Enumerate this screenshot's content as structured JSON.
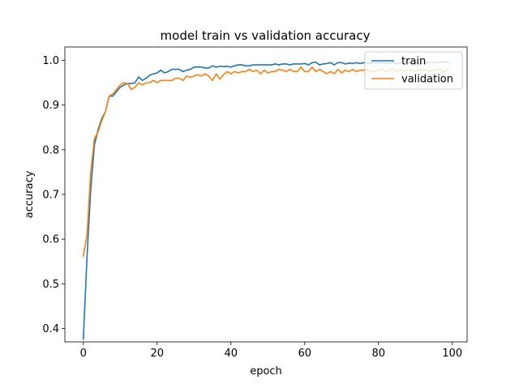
{
  "chart_data": {
    "type": "line",
    "title": "model train vs validation accuracy",
    "xlabel": "epoch",
    "ylabel": "accuracy",
    "xlim": [
      -5,
      104
    ],
    "ylim": [
      0.37,
      1.03
    ],
    "xticks": [
      0,
      20,
      40,
      60,
      80,
      100
    ],
    "yticks": [
      0.4,
      0.5,
      0.6,
      0.7,
      0.8,
      0.9,
      1.0
    ],
    "xtick_labels": [
      "0",
      "20",
      "40",
      "60",
      "80",
      "100"
    ],
    "ytick_labels": [
      "0.4",
      "0.5",
      "0.6",
      "0.7",
      "0.8",
      "0.9",
      "1.0"
    ],
    "grid": false,
    "legend_position": "upper right",
    "x": [
      0,
      1,
      2,
      3,
      4,
      5,
      6,
      7,
      8,
      9,
      10,
      11,
      12,
      13,
      14,
      15,
      16,
      17,
      18,
      19,
      20,
      21,
      22,
      23,
      24,
      25,
      26,
      27,
      28,
      29,
      30,
      31,
      32,
      33,
      34,
      35,
      36,
      37,
      38,
      39,
      40,
      41,
      42,
      43,
      44,
      45,
      46,
      47,
      48,
      49,
      50,
      51,
      52,
      53,
      54,
      55,
      56,
      57,
      58,
      59,
      60,
      61,
      62,
      63,
      64,
      65,
      66,
      67,
      68,
      69,
      70,
      71,
      72,
      73,
      74,
      75,
      76,
      77,
      78,
      79,
      80,
      81,
      82,
      83,
      84,
      85,
      86,
      87,
      88,
      89,
      90,
      91,
      92,
      93,
      94,
      95,
      96,
      97,
      98,
      99
    ],
    "series": [
      {
        "name": "train",
        "color": "#1f77b4",
        "values": [
          0.376,
          0.56,
          0.71,
          0.81,
          0.845,
          0.87,
          0.885,
          0.92,
          0.92,
          0.93,
          0.94,
          0.945,
          0.948,
          0.948,
          0.95,
          0.963,
          0.955,
          0.96,
          0.967,
          0.97,
          0.972,
          0.978,
          0.972,
          0.975,
          0.98,
          0.98,
          0.98,
          0.975,
          0.978,
          0.98,
          0.985,
          0.985,
          0.985,
          0.983,
          0.983,
          0.988,
          0.985,
          0.987,
          0.986,
          0.987,
          0.985,
          0.988,
          0.99,
          0.99,
          0.988,
          0.988,
          0.99,
          0.99,
          0.99,
          0.99,
          0.99,
          0.99,
          0.992,
          0.99,
          0.992,
          0.992,
          0.99,
          0.992,
          0.992,
          0.992,
          0.993,
          0.99,
          0.995,
          0.996,
          0.99,
          0.992,
          0.993,
          0.995,
          0.99,
          0.995,
          0.995,
          0.992,
          0.994,
          0.993,
          0.995,
          0.993,
          0.995,
          0.993,
          0.994,
          0.995,
          0.994,
          0.995,
          0.993,
          0.994,
          0.995,
          0.993,
          0.994,
          0.995,
          0.995,
          0.993,
          0.995,
          0.993,
          0.994,
          0.995,
          0.996,
          0.995,
          0.995,
          0.996,
          0.997,
          0.995
        ]
      },
      {
        "name": "validation",
        "color": "#ff7f0e",
        "values": [
          0.562,
          0.61,
          0.75,
          0.825,
          0.84,
          0.865,
          0.885,
          0.92,
          0.925,
          0.935,
          0.945,
          0.95,
          0.948,
          0.935,
          0.94,
          0.95,
          0.945,
          0.95,
          0.95,
          0.955,
          0.95,
          0.955,
          0.955,
          0.955,
          0.955,
          0.96,
          0.96,
          0.955,
          0.965,
          0.962,
          0.965,
          0.968,
          0.965,
          0.97,
          0.965,
          0.955,
          0.97,
          0.958,
          0.968,
          0.975,
          0.97,
          0.975,
          0.972,
          0.975,
          0.975,
          0.98,
          0.975,
          0.978,
          0.97,
          0.978,
          0.972,
          0.975,
          0.975,
          0.98,
          0.978,
          0.975,
          0.98,
          0.975,
          0.975,
          0.985,
          0.975,
          0.975,
          0.985,
          0.975,
          0.98,
          0.975,
          0.97,
          0.975,
          0.97,
          0.98,
          0.972,
          0.978,
          0.975,
          0.98,
          0.975,
          0.978,
          0.978,
          0.98,
          0.975,
          0.975,
          0.978,
          0.98,
          0.975,
          0.978,
          0.98,
          0.975,
          0.98,
          0.975,
          0.98,
          0.978,
          0.975,
          0.98,
          0.978,
          0.98,
          0.975,
          0.978,
          0.98,
          0.978,
          0.975,
          0.98
        ]
      }
    ]
  }
}
